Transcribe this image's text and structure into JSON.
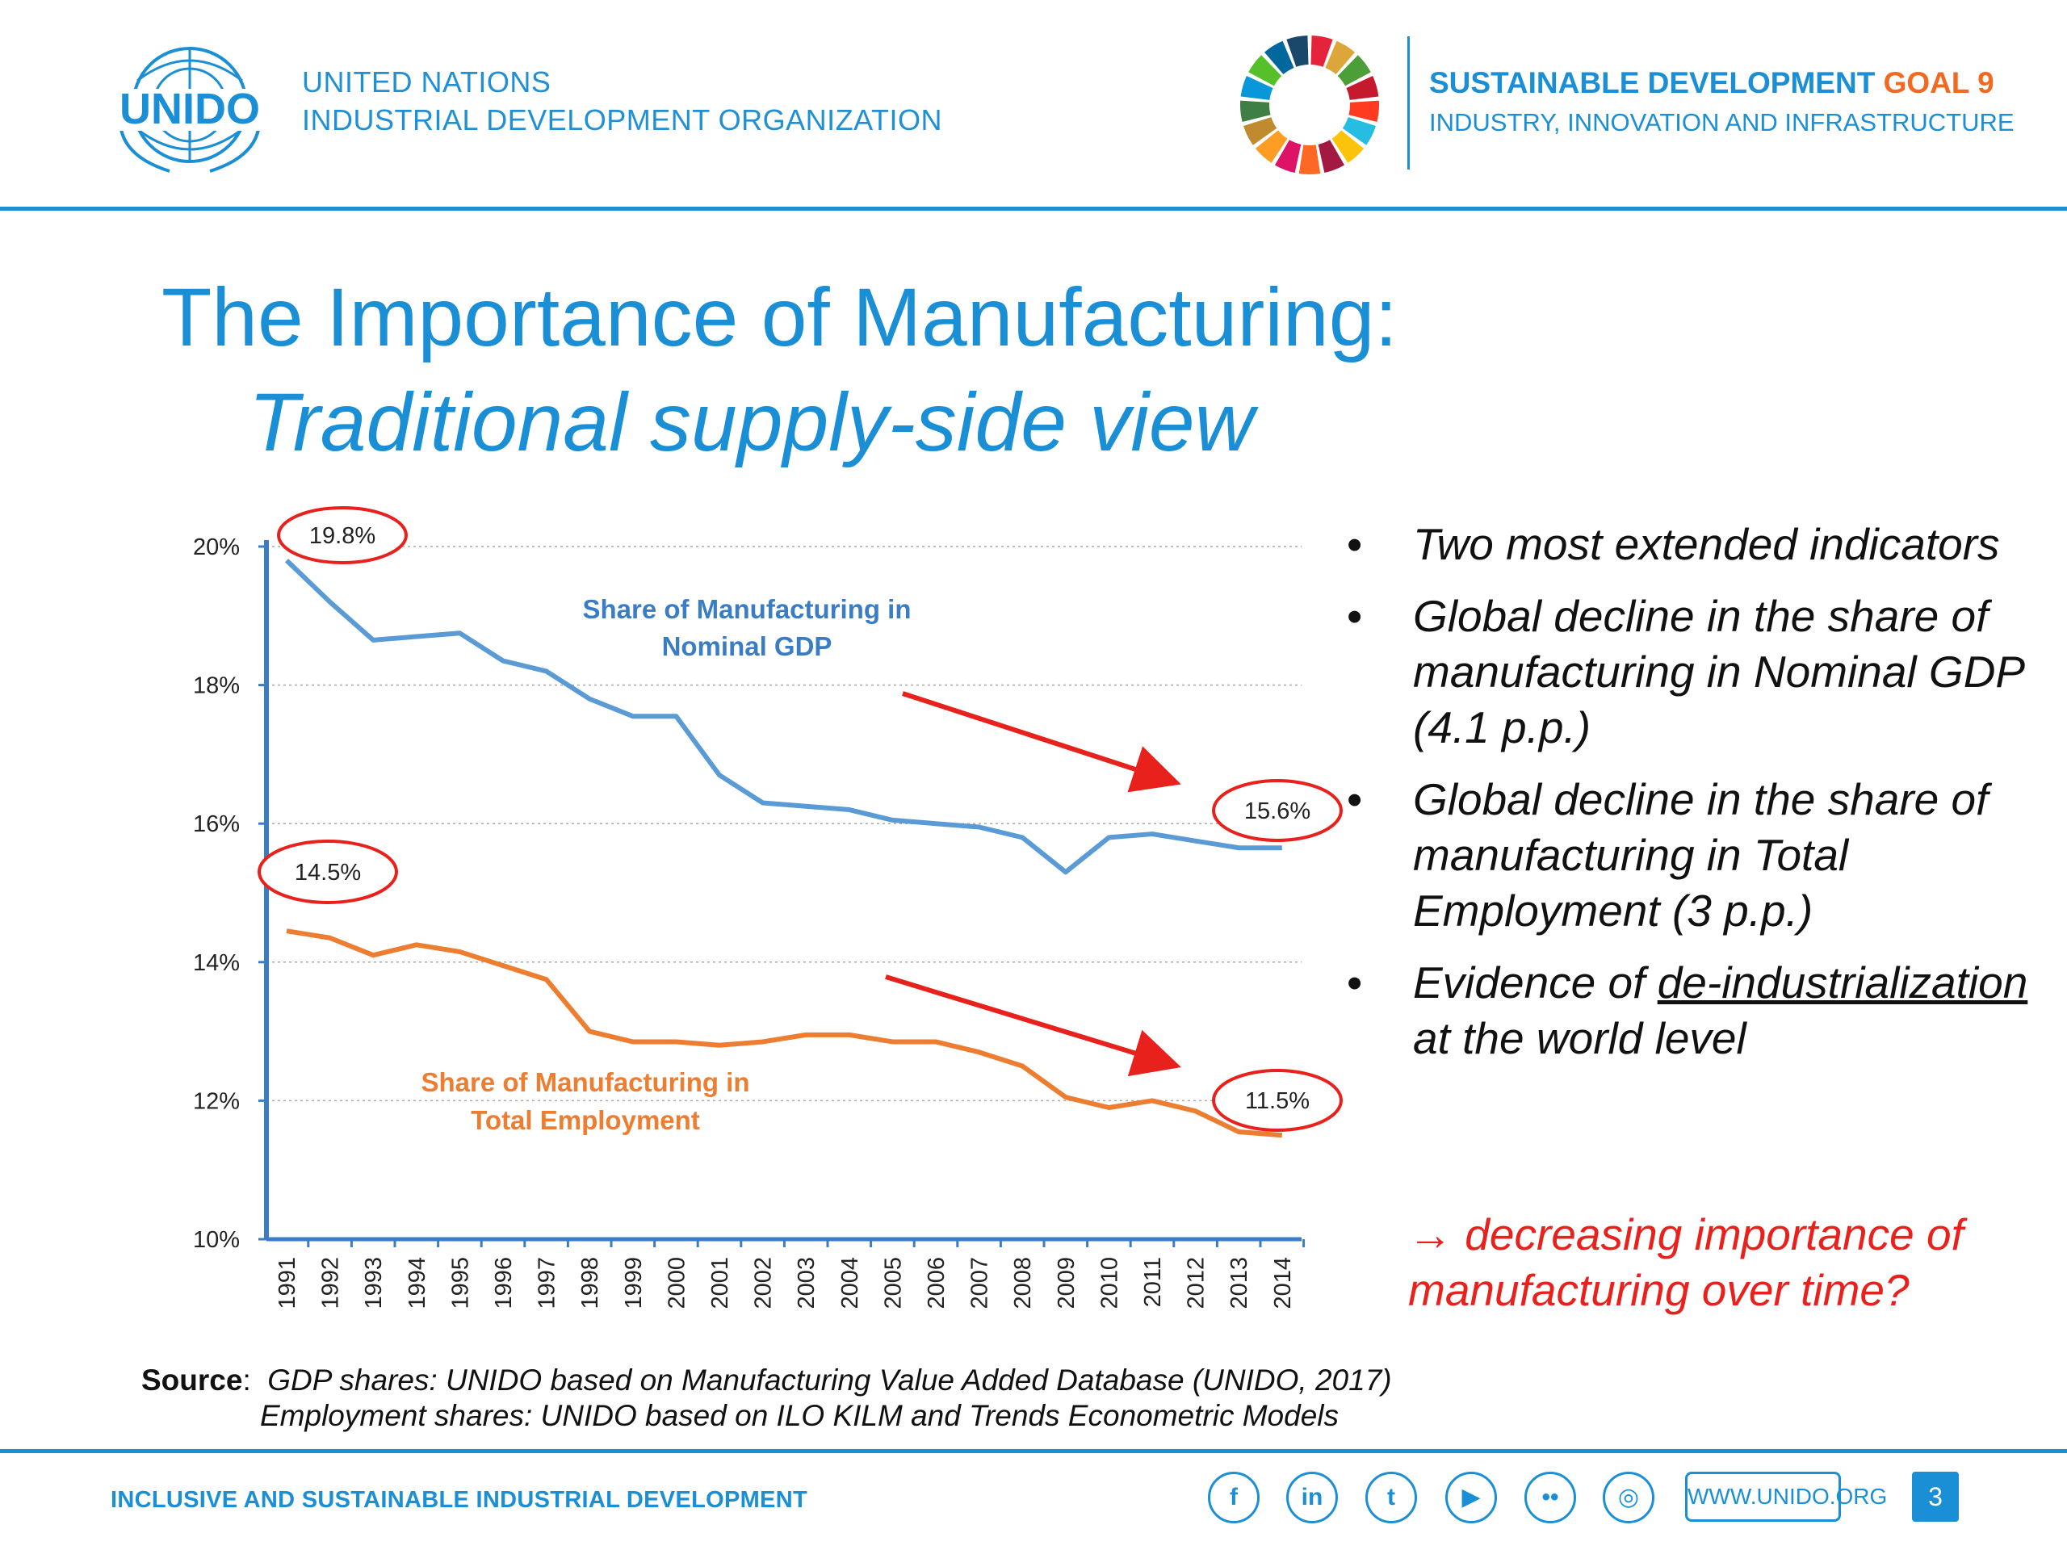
{
  "header": {
    "org_logo_text": "UNIDO",
    "org_name_line1": "UNITED NATIONS",
    "org_name_line2": "INDUSTRIAL DEVELOPMENT ORGANIZATION",
    "sdg_title_main": "SUSTAINABLE DEVELOPMENT ",
    "sdg_title_goal": "GOAL 9",
    "sdg_subtitle": "INDUSTRY, INNOVATION AND INFRASTRUCTURE",
    "sdg_colors": [
      "#e5243b",
      "#dda63a",
      "#4c9f38",
      "#c5192d",
      "#ff3a21",
      "#26bde2",
      "#fcc30b",
      "#a21942",
      "#fd6925",
      "#dd1367",
      "#fd9d24",
      "#bf8b2e",
      "#3f7e44",
      "#0a97d9",
      "#56c02b",
      "#00689d",
      "#19486a"
    ]
  },
  "slide": {
    "title_line1": "The Importance of Manufacturing:",
    "title_line2": "Traditional supply-side view"
  },
  "chart_data": {
    "type": "line",
    "x": [
      "1991",
      "1992",
      "1993",
      "1994",
      "1995",
      "1996",
      "1997",
      "1998",
      "1999",
      "2000",
      "2001",
      "2002",
      "2003",
      "2004",
      "2005",
      "2006",
      "2007",
      "2008",
      "2009",
      "2010",
      "2011",
      "2012",
      "2013",
      "2014"
    ],
    "y_ticks": [
      "20%",
      "18%",
      "16%",
      "14%",
      "12%",
      "10%"
    ],
    "ylim": [
      10,
      20
    ],
    "grid": "horizontal dotted",
    "series": [
      {
        "name": "Share of Manufacturing in Nominal GDP",
        "label_line1": "Share of Manufacturing in",
        "label_line2": "Nominal GDP",
        "color": "#5b9bd5",
        "values": [
          19.8,
          19.2,
          18.65,
          18.7,
          18.75,
          18.35,
          18.2,
          17.8,
          17.55,
          17.55,
          16.7,
          16.3,
          16.25,
          16.2,
          16.05,
          16.0,
          15.95,
          15.8,
          15.3,
          15.8,
          15.85,
          15.75,
          15.65,
          15.65
        ]
      },
      {
        "name": "Share of Manufacturing in Total Employment",
        "label_line1": "Share of Manufacturing in",
        "label_line2": "Total Employment",
        "color": "#ed7d31",
        "values": [
          14.45,
          14.35,
          14.1,
          14.25,
          14.15,
          13.95,
          13.75,
          13.0,
          12.85,
          12.85,
          12.8,
          12.85,
          12.95,
          12.95,
          12.85,
          12.85,
          12.7,
          12.5,
          12.05,
          11.9,
          12.0,
          11.85,
          11.55,
          11.5
        ]
      }
    ],
    "annotations": [
      "19.8%",
      "15.6%",
      "14.5%",
      "11.5%"
    ]
  },
  "bullets": {
    "b1": "Two most extended indicators",
    "b2": "Global decline in the share of manufacturing in Nominal GDP (4.1 p.p.)",
    "b3": "Global decline in the share of manufacturing in Total Employment (3 p.p.)",
    "b4_pre": "Evidence of ",
    "b4_u": "de-industrialization",
    "b4_post": " at the world level",
    "conclusion": "→ decreasing importance of manufacturing over time?",
    "marker": "•"
  },
  "source": {
    "label": "Source",
    "colon": ":",
    "line1": "GDP shares: UNIDO based on Manufacturing Value Added Database (UNIDO, 2017)",
    "line2": "Employment shares: UNIDO based on ILO KILM and Trends Econometric Models"
  },
  "footer": {
    "tagline": "INCLUSIVE AND SUSTAINABLE INDUSTRIAL DEVELOPMENT",
    "social": [
      {
        "name": "facebook-icon",
        "glyph": "f"
      },
      {
        "name": "linkedin-icon",
        "glyph": "in"
      },
      {
        "name": "twitter-icon",
        "glyph": "t"
      },
      {
        "name": "youtube-icon",
        "glyph": "▶"
      },
      {
        "name": "flickr-icon",
        "glyph": "••"
      },
      {
        "name": "instagram-icon",
        "glyph": "◎"
      }
    ],
    "website": "WWW.UNIDO.ORG",
    "page_number": "3"
  }
}
